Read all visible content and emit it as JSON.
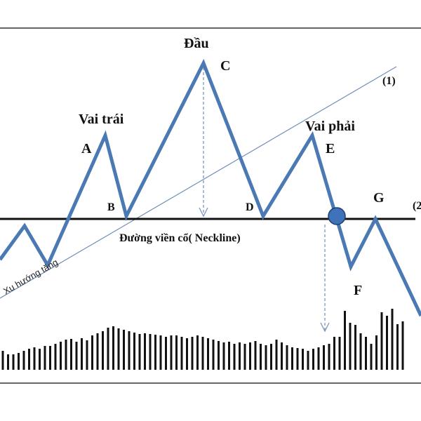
{
  "labels": {
    "head": "Đầu",
    "c": "C",
    "line1": "(1)",
    "left_shoulder": "Vai trái",
    "a": "A",
    "right_shoulder": "Vai phải",
    "e": "E",
    "b": "B",
    "d": "D",
    "g": "G",
    "line2": "(2",
    "neckline": "Đường viền cổ( Neckline)",
    "uptrend": "Xu hướng tăng",
    "f": "F"
  }
}
